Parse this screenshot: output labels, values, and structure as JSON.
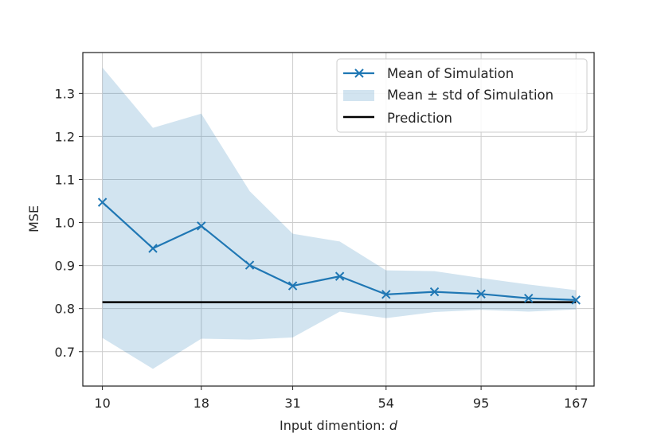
{
  "chart_data": {
    "type": "line",
    "title": "",
    "xlabel": "Input dimention: ",
    "xlabel_var": "d",
    "ylabel": "MSE",
    "xscale": "log",
    "x": [
      10,
      13.5,
      18,
      24,
      31,
      41,
      54,
      72,
      95,
      126,
      167
    ],
    "xticks": [
      10,
      18,
      31,
      54,
      95,
      167
    ],
    "xtick_labels": [
      "10",
      "18",
      "31",
      "54",
      "95",
      "167"
    ],
    "yticks": [
      0.7,
      0.8,
      0.9,
      1.0,
      1.1,
      1.2,
      1.3
    ],
    "ytick_labels": [
      "0.7",
      "0.8",
      "0.9",
      "1.0",
      "1.1",
      "1.2",
      "1.3"
    ],
    "ylim": [
      0.62,
      1.395
    ],
    "xlim": [
      8.9,
      186
    ],
    "grid": true,
    "legend_position": "top-right",
    "series": [
      {
        "name": "Mean of Simulation",
        "kind": "line-markers",
        "marker": "x",
        "color": "#1f77b4",
        "values": [
          1.047,
          0.94,
          0.992,
          0.901,
          0.853,
          0.875,
          0.833,
          0.839,
          0.834,
          0.824,
          0.82
        ]
      },
      {
        "name": "Mean ± std of Simulation",
        "kind": "band",
        "color": "#1f77b4",
        "opacity": 0.2,
        "upper": [
          1.36,
          1.22,
          1.253,
          1.073,
          0.974,
          0.956,
          0.889,
          0.887,
          0.871,
          0.856,
          0.843
        ],
        "lower": [
          0.732,
          0.66,
          0.73,
          0.728,
          0.733,
          0.793,
          0.778,
          0.792,
          0.797,
          0.793,
          0.798
        ]
      },
      {
        "name": "Prediction",
        "kind": "line",
        "color": "#000000",
        "values": [
          0.815,
          0.815,
          0.815,
          0.815,
          0.815,
          0.815,
          0.815,
          0.815,
          0.815,
          0.815,
          0.815
        ]
      }
    ]
  }
}
